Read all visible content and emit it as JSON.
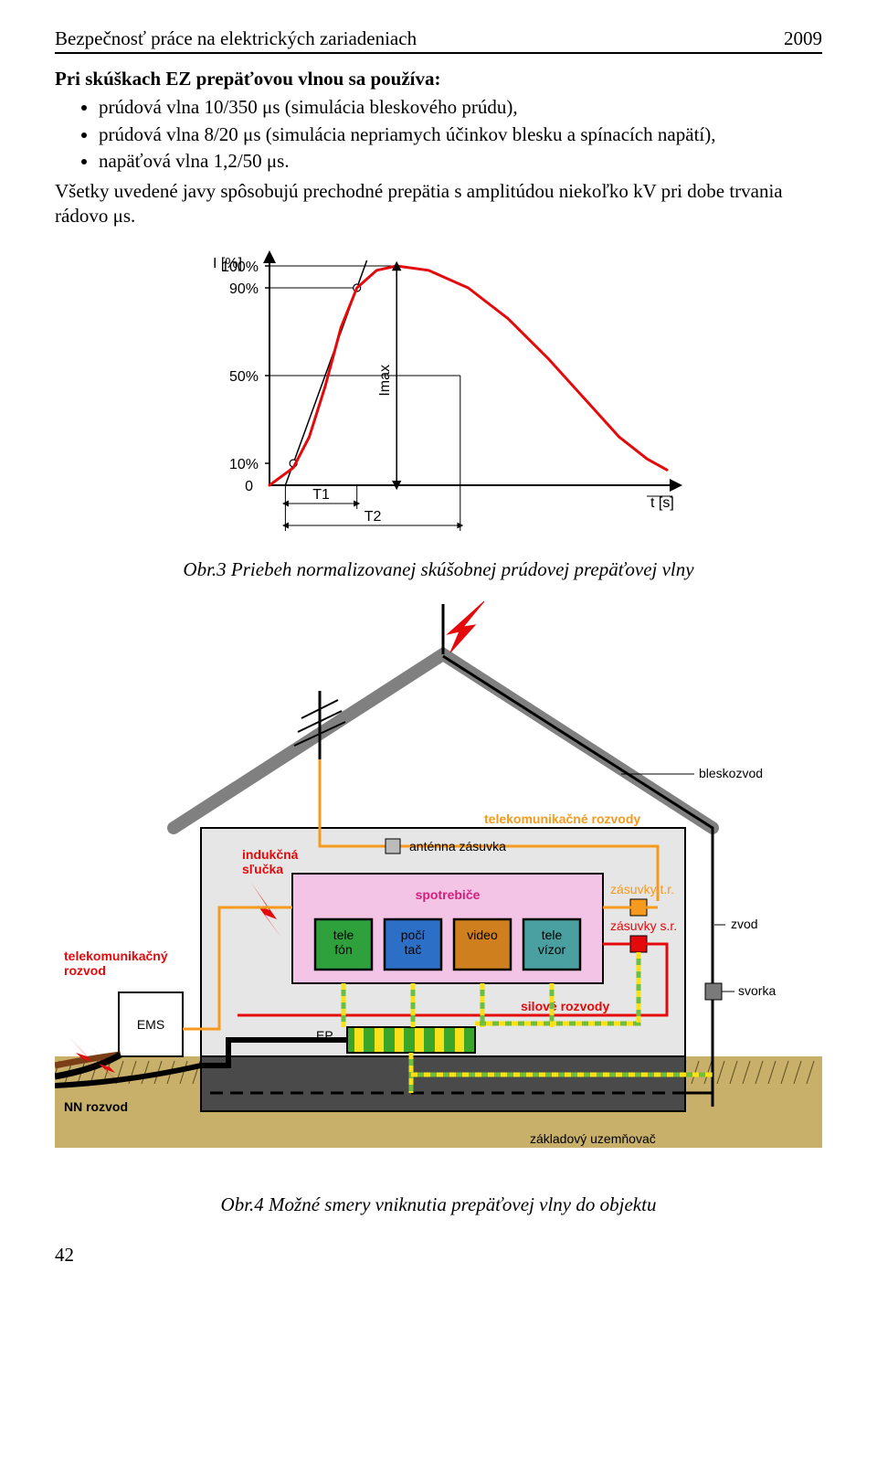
{
  "header": {
    "title": "Bezpečnosť práce na elektrických zariadeniach",
    "year": "2009"
  },
  "intro": {
    "lead": "Pri skúškach EZ prepäťovou vlnou sa používa:",
    "bullets": [
      "prúdová vlna 10/350 μs (simulácia bleskového prúdu),",
      "prúdová vlna 8/20 μs (simulácia nepriamych účinkov blesku a spínacích napätí),",
      "napäťová vlna 1,2/50 μs."
    ],
    "follow": "Všetky uvedené javy spôsobujú prechodné prepätia s amplitúdou niekoľko kV pri dobe trvania rádovo μs."
  },
  "fig3": {
    "caption": "Obr.3  Priebeh normalizovanej skúšobnej prúdovej prepäťovej vlny",
    "y_axis_label": "I [%]",
    "x_axis_label": "t [s]",
    "y_ticks": [
      "100%",
      "90%",
      "50%",
      "10%",
      "0"
    ],
    "y_tick_values": [
      100,
      90,
      50,
      10,
      0
    ],
    "imax_label": "Imax",
    "t1_label": "T1",
    "t2_label": "T2",
    "curve_color": "#e40a0c",
    "axis_color": "#000000",
    "background": "#ffffff",
    "line_width_curve": 3,
    "curve_points": [
      [
        0.0,
        0
      ],
      [
        0.06,
        8
      ],
      [
        0.1,
        22
      ],
      [
        0.14,
        45
      ],
      [
        0.18,
        72
      ],
      [
        0.22,
        90
      ],
      [
        0.27,
        98
      ],
      [
        0.32,
        100
      ],
      [
        0.4,
        98
      ],
      [
        0.5,
        90
      ],
      [
        0.6,
        76
      ],
      [
        0.7,
        58
      ],
      [
        0.8,
        38
      ],
      [
        0.88,
        22
      ],
      [
        0.95,
        12
      ],
      [
        1.0,
        7
      ]
    ],
    "tangent_points": [
      [
        0.06,
        10
      ],
      [
        0.22,
        90
      ]
    ],
    "t1_x": 0.22,
    "t2_x": 0.48
  },
  "fig4": {
    "caption": "Obr.4  Možné smery vniknutia prepäťovej vlny do objektu",
    "labels": {
      "bleskozvod": "bleskozvod",
      "telekom_rozvody": "telekomunikačné rozvody",
      "antenna": "anténna zásuvka",
      "indukcna": "indukčná\nsľučka",
      "spotrebice": "spotrebiče",
      "zasuvky_tr": "zásuvky t.r.",
      "zasuvky_sr": "zásuvky s.r.",
      "silove": "silové rozvody",
      "zvod": "zvod",
      "svorka": "svorka",
      "telekom_rozvod": "telekomunikačný\nrozvod",
      "nn_rozvod": "NN rozvod",
      "zaklad": "základový uzemňovač",
      "ems": "EMS",
      "ep": "EP",
      "devices": [
        "tele\nfón",
        "počí\ntač",
        "video",
        "tele\nvízor"
      ],
      "device_colors": [
        "#2fa13c",
        "#2c6fc7",
        "#d07f1e",
        "#4aa0a0"
      ]
    },
    "colors": {
      "roof": "#808080",
      "wall": "#e6e6e6",
      "ground": "#c8b06a",
      "ground_hatch": "#5c4a20",
      "foundation": "#4a4a4a",
      "spotrebice_fill": "#f4c4e6",
      "spotrebice_border": "#000000",
      "orange": "#f59a1e",
      "red": "#e40a0c",
      "green_line": "#6fbf3f",
      "yellow_dash": "#f7e11a",
      "black": "#000000",
      "brown_cable": "#7a3f16",
      "ems_fill": "#ffffff",
      "ep_fill": "#39a62a",
      "ep_stripe": "#f7e11a",
      "tr_box": "#f59a1e",
      "sr_box": "#e40a0c",
      "svorka_box": "#7a7a7a",
      "spotrebice_text": "#d21e7b"
    }
  },
  "page_num": "42"
}
